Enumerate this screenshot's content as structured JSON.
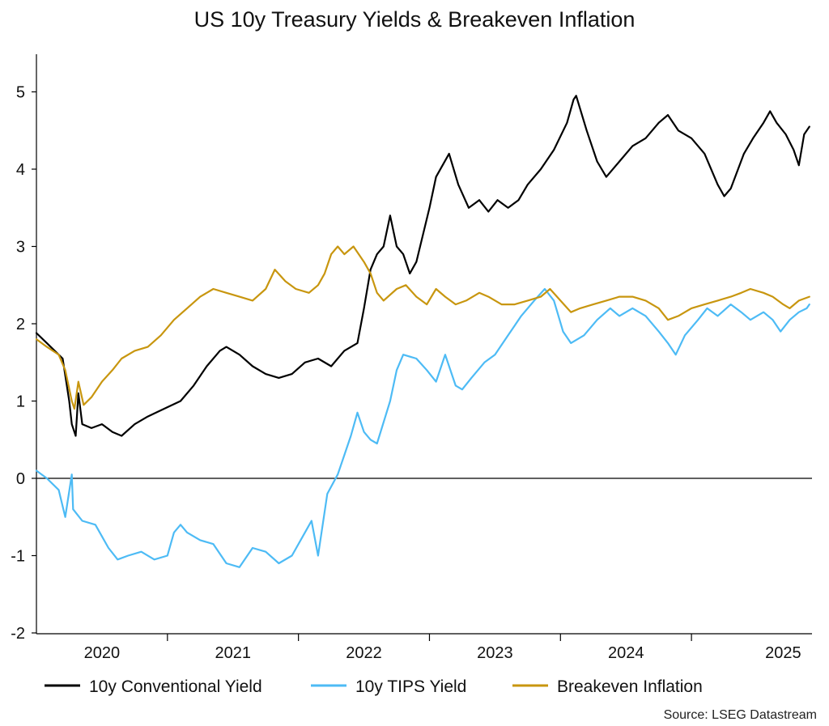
{
  "chart_data": {
    "type": "line",
    "title": "US 10y Treasury Yields & Breakeven Inflation",
    "source": "Source: LSEG Datastream",
    "xlabel": "",
    "ylabel": "",
    "xlim": [
      2019.5,
      2025.42
    ],
    "ylim": [
      -2,
      5.5
    ],
    "y_ticks": [
      -2,
      -1,
      0,
      1,
      2,
      3,
      4,
      5
    ],
    "x_year_labels": [
      {
        "label": "2020",
        "center": 2020.0
      },
      {
        "label": "2021",
        "center": 2021.0
      },
      {
        "label": "2022",
        "center": 2022.0
      },
      {
        "label": "2023",
        "center": 2023.0
      },
      {
        "label": "2024",
        "center": 2024.0
      },
      {
        "label": "2025",
        "center": 2025.2
      }
    ],
    "x_year_boundaries": [
      2020.5,
      2021.5,
      2022.5,
      2023.5,
      2024.5
    ],
    "zero_line": true,
    "legend_position": "bottom",
    "series": [
      {
        "name": "10y Conventional Yield",
        "color": "#000000",
        "points": [
          [
            2019.5,
            1.88
          ],
          [
            2019.58,
            1.75
          ],
          [
            2019.67,
            1.6
          ],
          [
            2019.7,
            1.55
          ],
          [
            2019.75,
            1.0
          ],
          [
            2019.77,
            0.7
          ],
          [
            2019.8,
            0.55
          ],
          [
            2019.82,
            1.1
          ],
          [
            2019.85,
            0.7
          ],
          [
            2019.92,
            0.65
          ],
          [
            2020.0,
            0.7
          ],
          [
            2020.08,
            0.6
          ],
          [
            2020.15,
            0.55
          ],
          [
            2020.25,
            0.7
          ],
          [
            2020.35,
            0.8
          ],
          [
            2020.5,
            0.92
          ],
          [
            2020.6,
            1.0
          ],
          [
            2020.7,
            1.2
          ],
          [
            2020.8,
            1.45
          ],
          [
            2020.9,
            1.65
          ],
          [
            2020.95,
            1.7
          ],
          [
            2021.05,
            1.6
          ],
          [
            2021.15,
            1.45
          ],
          [
            2021.25,
            1.35
          ],
          [
            2021.35,
            1.3
          ],
          [
            2021.45,
            1.35
          ],
          [
            2021.55,
            1.5
          ],
          [
            2021.65,
            1.55
          ],
          [
            2021.75,
            1.45
          ],
          [
            2021.85,
            1.65
          ],
          [
            2021.95,
            1.75
          ],
          [
            2022.0,
            2.2
          ],
          [
            2022.05,
            2.7
          ],
          [
            2022.1,
            2.9
          ],
          [
            2022.15,
            3.0
          ],
          [
            2022.2,
            3.4
          ],
          [
            2022.25,
            3.0
          ],
          [
            2022.3,
            2.9
          ],
          [
            2022.35,
            2.65
          ],
          [
            2022.4,
            2.8
          ],
          [
            2022.5,
            3.5
          ],
          [
            2022.55,
            3.9
          ],
          [
            2022.65,
            4.2
          ],
          [
            2022.72,
            3.8
          ],
          [
            2022.8,
            3.5
          ],
          [
            2022.88,
            3.6
          ],
          [
            2022.95,
            3.45
          ],
          [
            2023.02,
            3.6
          ],
          [
            2023.1,
            3.5
          ],
          [
            2023.18,
            3.6
          ],
          [
            2023.25,
            3.8
          ],
          [
            2023.35,
            4.0
          ],
          [
            2023.45,
            4.25
          ],
          [
            2023.55,
            4.6
          ],
          [
            2023.6,
            4.9
          ],
          [
            2023.62,
            4.95
          ],
          [
            2023.7,
            4.5
          ],
          [
            2023.78,
            4.1
          ],
          [
            2023.85,
            3.9
          ],
          [
            2023.95,
            4.1
          ],
          [
            2024.05,
            4.3
          ],
          [
            2024.15,
            4.4
          ],
          [
            2024.25,
            4.6
          ],
          [
            2024.32,
            4.7
          ],
          [
            2024.4,
            4.5
          ],
          [
            2024.5,
            4.4
          ],
          [
            2024.6,
            4.2
          ],
          [
            2024.7,
            3.8
          ],
          [
            2024.75,
            3.65
          ],
          [
            2024.8,
            3.75
          ],
          [
            2024.9,
            4.2
          ],
          [
            2024.97,
            4.4
          ],
          [
            2025.05,
            4.6
          ],
          [
            2025.1,
            4.75
          ],
          [
            2025.15,
            4.6
          ],
          [
            2025.22,
            4.45
          ],
          [
            2025.28,
            4.25
          ],
          [
            2025.32,
            4.05
          ],
          [
            2025.36,
            4.45
          ],
          [
            2025.4,
            4.55
          ]
        ]
      },
      {
        "name": "10y TIPS Yield",
        "color": "#4dbbf5",
        "points": [
          [
            2019.5,
            0.1
          ],
          [
            2019.58,
            0.0
          ],
          [
            2019.67,
            -0.15
          ],
          [
            2019.72,
            -0.5
          ],
          [
            2019.77,
            0.05
          ],
          [
            2019.78,
            -0.4
          ],
          [
            2019.85,
            -0.55
          ],
          [
            2019.95,
            -0.6
          ],
          [
            2020.05,
            -0.9
          ],
          [
            2020.12,
            -1.05
          ],
          [
            2020.2,
            -1.0
          ],
          [
            2020.3,
            -0.95
          ],
          [
            2020.4,
            -1.05
          ],
          [
            2020.5,
            -1.0
          ],
          [
            2020.55,
            -0.7
          ],
          [
            2020.6,
            -0.6
          ],
          [
            2020.65,
            -0.7
          ],
          [
            2020.75,
            -0.8
          ],
          [
            2020.85,
            -0.85
          ],
          [
            2020.95,
            -1.1
          ],
          [
            2021.05,
            -1.15
          ],
          [
            2021.15,
            -0.9
          ],
          [
            2021.25,
            -0.95
          ],
          [
            2021.35,
            -1.1
          ],
          [
            2021.45,
            -1.0
          ],
          [
            2021.55,
            -0.7
          ],
          [
            2021.6,
            -0.55
          ],
          [
            2021.65,
            -1.0
          ],
          [
            2021.72,
            -0.2
          ],
          [
            2021.8,
            0.05
          ],
          [
            2021.85,
            0.3
          ],
          [
            2021.9,
            0.55
          ],
          [
            2021.95,
            0.85
          ],
          [
            2022.0,
            0.6
          ],
          [
            2022.05,
            0.5
          ],
          [
            2022.1,
            0.45
          ],
          [
            2022.2,
            1.0
          ],
          [
            2022.25,
            1.4
          ],
          [
            2022.3,
            1.6
          ],
          [
            2022.4,
            1.55
          ],
          [
            2022.48,
            1.4
          ],
          [
            2022.55,
            1.25
          ],
          [
            2022.62,
            1.6
          ],
          [
            2022.7,
            1.2
          ],
          [
            2022.75,
            1.15
          ],
          [
            2022.82,
            1.3
          ],
          [
            2022.92,
            1.5
          ],
          [
            2023.0,
            1.6
          ],
          [
            2023.1,
            1.85
          ],
          [
            2023.2,
            2.1
          ],
          [
            2023.3,
            2.3
          ],
          [
            2023.38,
            2.45
          ],
          [
            2023.45,
            2.3
          ],
          [
            2023.52,
            1.9
          ],
          [
            2023.58,
            1.75
          ],
          [
            2023.68,
            1.85
          ],
          [
            2023.78,
            2.05
          ],
          [
            2023.88,
            2.2
          ],
          [
            2023.95,
            2.1
          ],
          [
            2024.05,
            2.2
          ],
          [
            2024.15,
            2.1
          ],
          [
            2024.25,
            1.9
          ],
          [
            2024.32,
            1.75
          ],
          [
            2024.38,
            1.6
          ],
          [
            2024.45,
            1.85
          ],
          [
            2024.55,
            2.05
          ],
          [
            2024.62,
            2.2
          ],
          [
            2024.7,
            2.1
          ],
          [
            2024.8,
            2.25
          ],
          [
            2024.88,
            2.15
          ],
          [
            2024.95,
            2.05
          ],
          [
            2025.05,
            2.15
          ],
          [
            2025.12,
            2.05
          ],
          [
            2025.18,
            1.9
          ],
          [
            2025.25,
            2.05
          ],
          [
            2025.32,
            2.15
          ],
          [
            2025.38,
            2.2
          ],
          [
            2025.4,
            2.25
          ]
        ]
      },
      {
        "name": "Breakeven Inflation",
        "color": "#c8960f",
        "points": [
          [
            2019.5,
            1.8
          ],
          [
            2019.58,
            1.7
          ],
          [
            2019.67,
            1.6
          ],
          [
            2019.72,
            1.4
          ],
          [
            2019.77,
            1.0
          ],
          [
            2019.79,
            0.9
          ],
          [
            2019.82,
            1.25
          ],
          [
            2019.86,
            0.95
          ],
          [
            2019.92,
            1.05
          ],
          [
            2020.0,
            1.25
          ],
          [
            2020.08,
            1.4
          ],
          [
            2020.15,
            1.55
          ],
          [
            2020.25,
            1.65
          ],
          [
            2020.35,
            1.7
          ],
          [
            2020.45,
            1.85
          ],
          [
            2020.55,
            2.05
          ],
          [
            2020.65,
            2.2
          ],
          [
            2020.75,
            2.35
          ],
          [
            2020.85,
            2.45
          ],
          [
            2020.95,
            2.4
          ],
          [
            2021.05,
            2.35
          ],
          [
            2021.15,
            2.3
          ],
          [
            2021.25,
            2.45
          ],
          [
            2021.32,
            2.7
          ],
          [
            2021.4,
            2.55
          ],
          [
            2021.48,
            2.45
          ],
          [
            2021.58,
            2.4
          ],
          [
            2021.65,
            2.5
          ],
          [
            2021.7,
            2.65
          ],
          [
            2021.75,
            2.9
          ],
          [
            2021.8,
            3.0
          ],
          [
            2021.85,
            2.9
          ],
          [
            2021.92,
            3.0
          ],
          [
            2022.0,
            2.8
          ],
          [
            2022.05,
            2.65
          ],
          [
            2022.1,
            2.4
          ],
          [
            2022.15,
            2.3
          ],
          [
            2022.25,
            2.45
          ],
          [
            2022.32,
            2.5
          ],
          [
            2022.4,
            2.35
          ],
          [
            2022.48,
            2.25
          ],
          [
            2022.55,
            2.45
          ],
          [
            2022.62,
            2.35
          ],
          [
            2022.7,
            2.25
          ],
          [
            2022.78,
            2.3
          ],
          [
            2022.88,
            2.4
          ],
          [
            2022.95,
            2.35
          ],
          [
            2023.05,
            2.25
          ],
          [
            2023.15,
            2.25
          ],
          [
            2023.25,
            2.3
          ],
          [
            2023.35,
            2.35
          ],
          [
            2023.42,
            2.45
          ],
          [
            2023.5,
            2.3
          ],
          [
            2023.58,
            2.15
          ],
          [
            2023.65,
            2.2
          ],
          [
            2023.75,
            2.25
          ],
          [
            2023.85,
            2.3
          ],
          [
            2023.95,
            2.35
          ],
          [
            2024.05,
            2.35
          ],
          [
            2024.15,
            2.3
          ],
          [
            2024.25,
            2.2
          ],
          [
            2024.32,
            2.05
          ],
          [
            2024.4,
            2.1
          ],
          [
            2024.5,
            2.2
          ],
          [
            2024.6,
            2.25
          ],
          [
            2024.7,
            2.3
          ],
          [
            2024.8,
            2.35
          ],
          [
            2024.88,
            2.4
          ],
          [
            2024.95,
            2.45
          ],
          [
            2025.05,
            2.4
          ],
          [
            2025.12,
            2.35
          ],
          [
            2025.2,
            2.25
          ],
          [
            2025.25,
            2.2
          ],
          [
            2025.32,
            2.3
          ],
          [
            2025.4,
            2.35
          ]
        ]
      }
    ]
  }
}
